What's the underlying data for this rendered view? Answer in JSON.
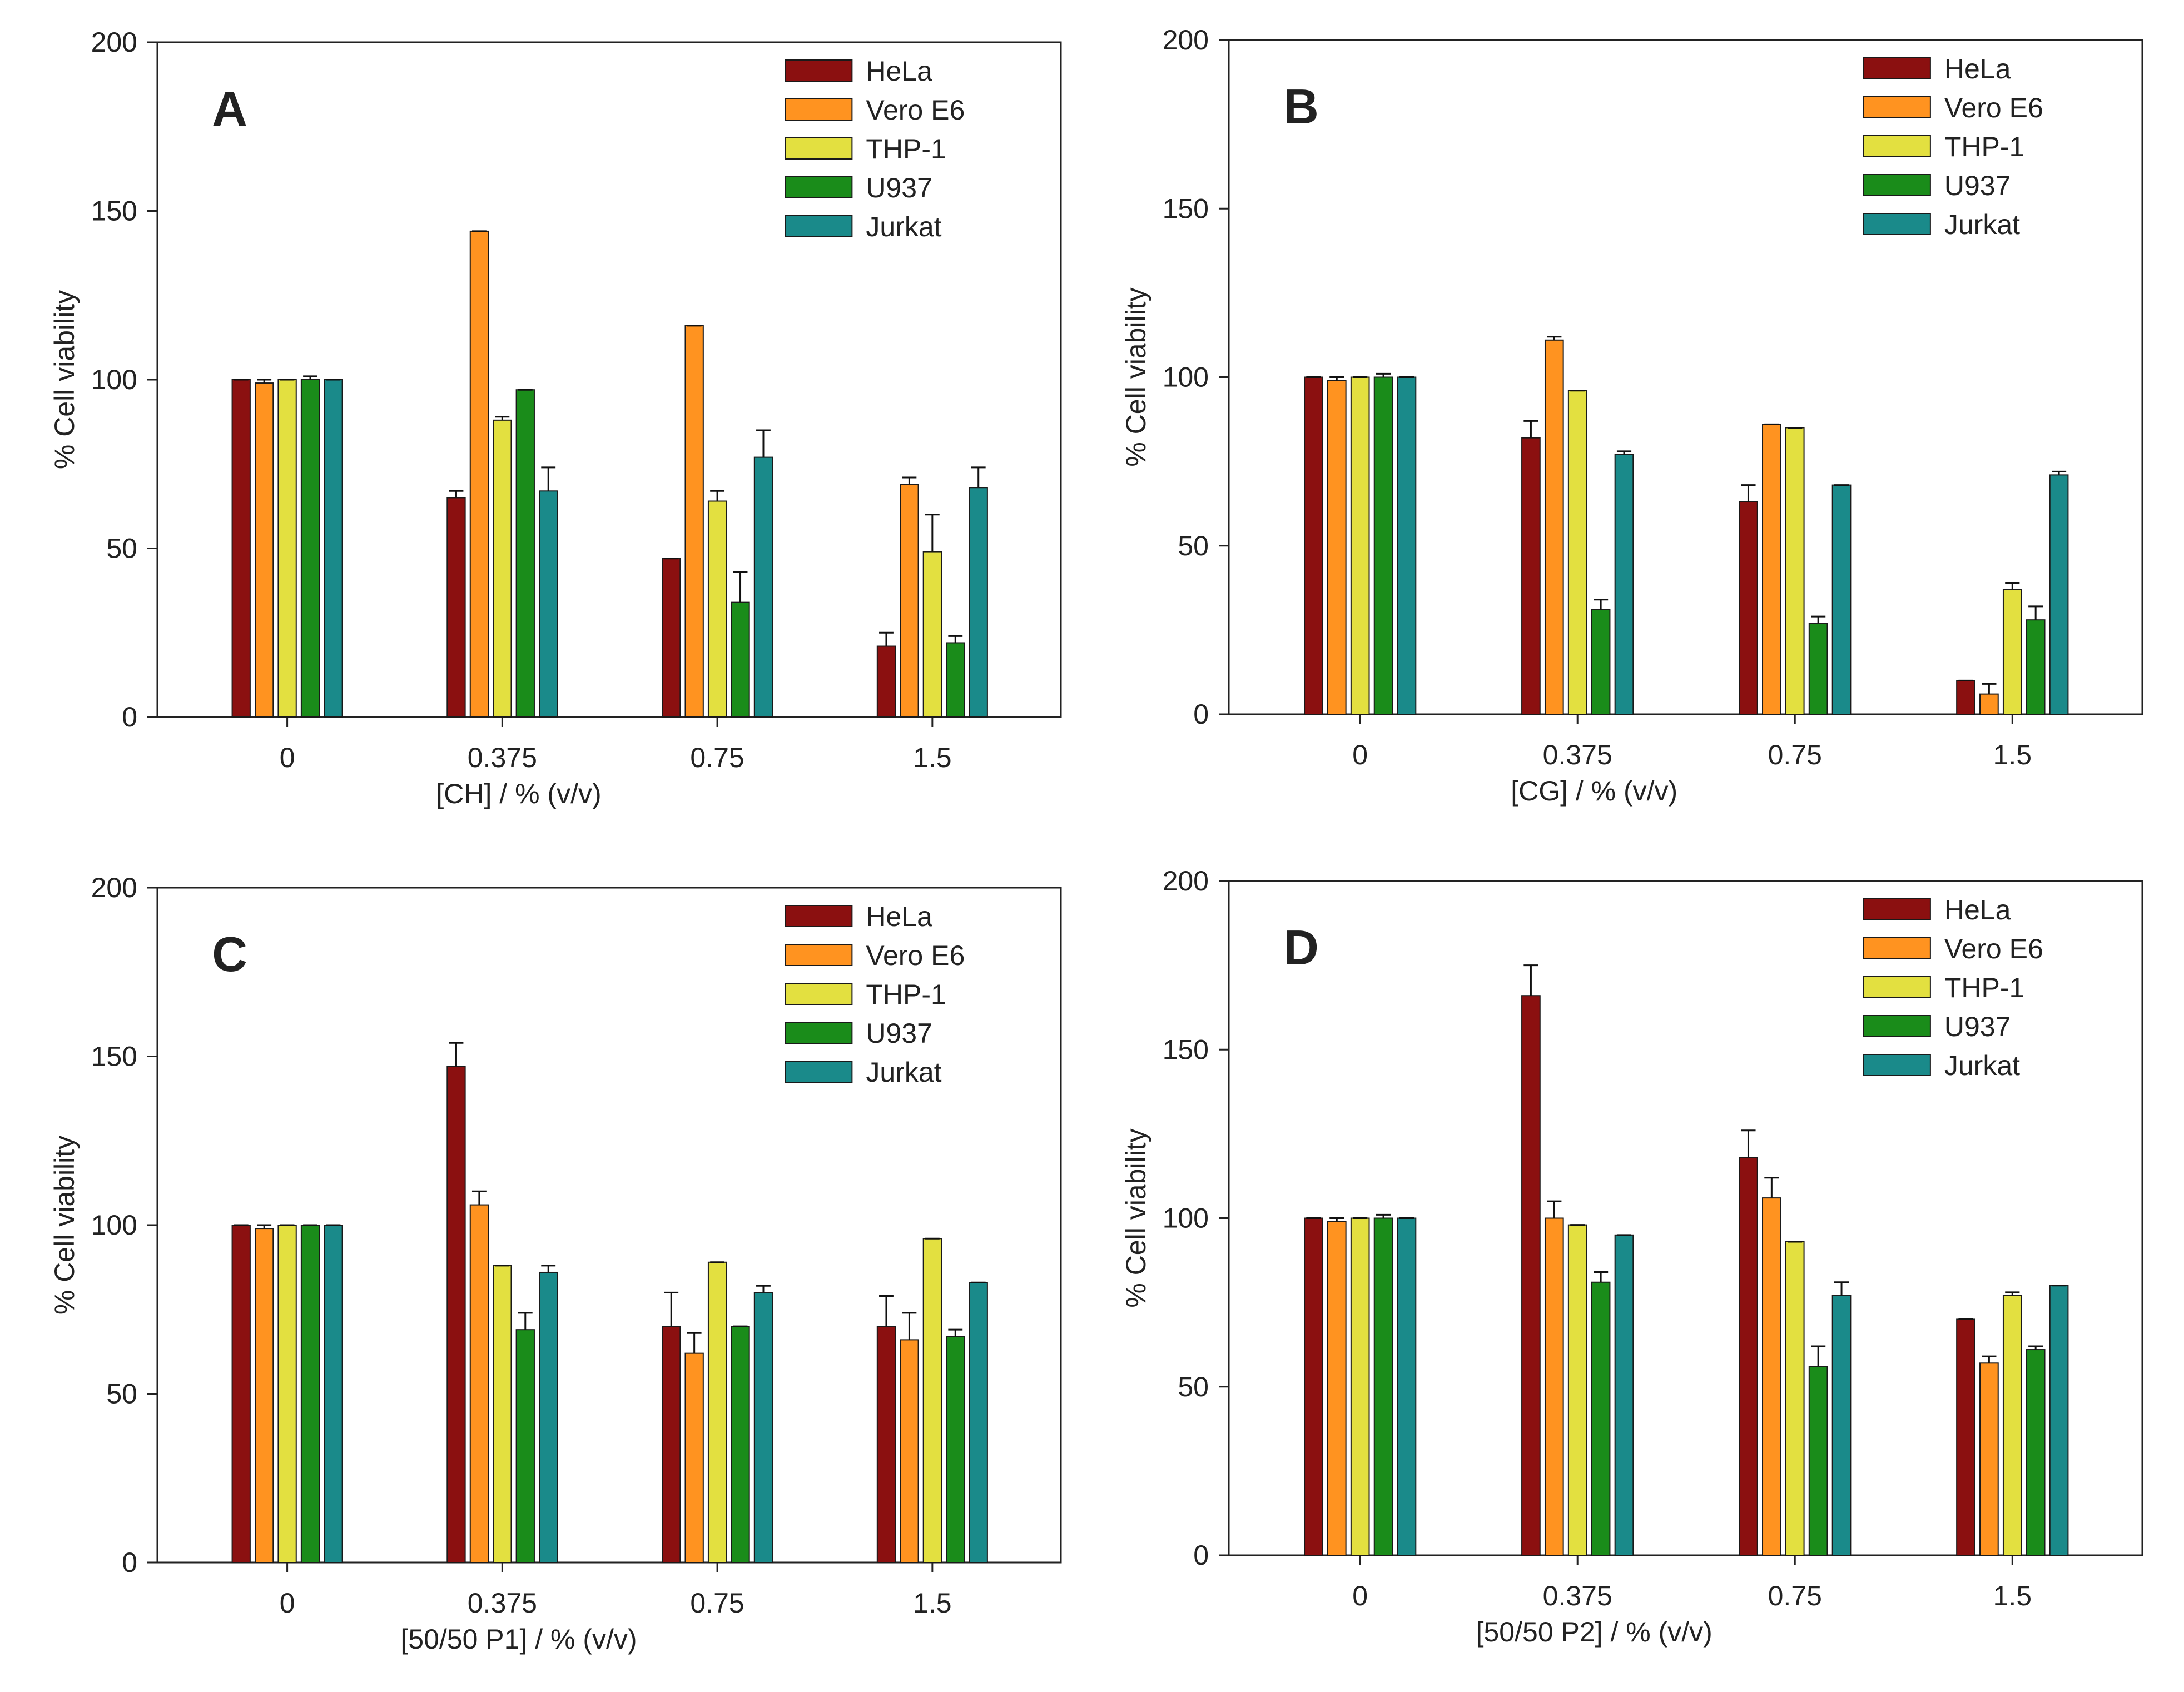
{
  "chart_data": [
    {
      "type": "bar",
      "panel_letter": "A",
      "xlabel": "[CH] / % (v/v)",
      "ylabel": "% Cell viability",
      "ylim": [
        0,
        200
      ],
      "yticks": [
        0,
        50,
        100,
        150,
        200
      ],
      "categories": [
        "0",
        "0.375",
        "0.75",
        "1.5"
      ],
      "legend_position": "top-right",
      "series": [
        {
          "name": "HeLa",
          "color": "#8b1010",
          "values": [
            100,
            65,
            47,
            21
          ],
          "errors": [
            0,
            2,
            0,
            4
          ]
        },
        {
          "name": "Vero E6",
          "color": "#ff9320",
          "values": [
            99,
            144,
            116,
            69
          ],
          "errors": [
            1,
            0,
            0,
            2
          ]
        },
        {
          "name": "THP-1",
          "color": "#e3e040",
          "values": [
            100,
            88,
            64,
            49
          ],
          "errors": [
            0,
            1,
            3,
            11
          ]
        },
        {
          "name": "U937",
          "color": "#1a8c1a",
          "values": [
            100,
            97,
            34,
            22
          ],
          "errors": [
            1,
            0,
            9,
            2
          ]
        },
        {
          "name": "Jurkat",
          "color": "#1a8a8a",
          "values": [
            100,
            67,
            77,
            68
          ],
          "errors": [
            0,
            7,
            8,
            6
          ]
        }
      ]
    },
    {
      "type": "bar",
      "panel_letter": "B",
      "xlabel": "[CG] / % (v/v)",
      "ylabel": "% Cell viability",
      "ylim": [
        0,
        200
      ],
      "yticks": [
        0,
        50,
        100,
        150,
        200
      ],
      "categories": [
        "0",
        "0.375",
        "0.75",
        "1.5"
      ],
      "legend_position": "top-right",
      "series": [
        {
          "name": "HeLa",
          "color": "#8b1010",
          "values": [
            100,
            82,
            63,
            10
          ],
          "errors": [
            0,
            5,
            5,
            0
          ]
        },
        {
          "name": "Vero E6",
          "color": "#ff9320",
          "values": [
            99,
            111,
            86,
            6
          ],
          "errors": [
            1,
            1,
            0,
            3
          ]
        },
        {
          "name": "THP-1",
          "color": "#e3e040",
          "values": [
            100,
            96,
            85,
            37
          ],
          "errors": [
            0,
            0,
            0,
            2
          ]
        },
        {
          "name": "U937",
          "color": "#1a8c1a",
          "values": [
            100,
            31,
            27,
            28
          ],
          "errors": [
            1,
            3,
            2,
            4
          ]
        },
        {
          "name": "Jurkat",
          "color": "#1a8a8a",
          "values": [
            100,
            77,
            68,
            71
          ],
          "errors": [
            0,
            1,
            0,
            1
          ]
        }
      ]
    },
    {
      "type": "bar",
      "panel_letter": "C",
      "xlabel": "[50/50 P1] / % (v/v)",
      "ylabel": "% Cell viability",
      "ylim": [
        0,
        200
      ],
      "yticks": [
        0,
        50,
        100,
        150,
        200
      ],
      "categories": [
        "0",
        "0.375",
        "0.75",
        "1.5"
      ],
      "legend_position": "top-right",
      "series": [
        {
          "name": "HeLa",
          "color": "#8b1010",
          "values": [
            100,
            147,
            70,
            70
          ],
          "errors": [
            0,
            7,
            10,
            9
          ]
        },
        {
          "name": "Vero E6",
          "color": "#ff9320",
          "values": [
            99,
            106,
            62,
            66
          ],
          "errors": [
            1,
            4,
            6,
            8
          ]
        },
        {
          "name": "THP-1",
          "color": "#e3e040",
          "values": [
            100,
            88,
            89,
            96
          ],
          "errors": [
            0,
            0,
            0,
            0
          ]
        },
        {
          "name": "U937",
          "color": "#1a8c1a",
          "values": [
            100,
            69,
            70,
            67
          ],
          "errors": [
            0,
            5,
            0,
            2
          ]
        },
        {
          "name": "Jurkat",
          "color": "#1a8a8a",
          "values": [
            100,
            86,
            80,
            83
          ],
          "errors": [
            0,
            2,
            2,
            0
          ]
        }
      ]
    },
    {
      "type": "bar",
      "panel_letter": "D",
      "xlabel": "[50/50 P2] / % (v/v)",
      "ylabel": "% Cell viability",
      "ylim": [
        0,
        200
      ],
      "yticks": [
        0,
        50,
        100,
        150,
        200
      ],
      "categories": [
        "0",
        "0.375",
        "0.75",
        "1.5"
      ],
      "legend_position": "top-right",
      "series": [
        {
          "name": "HeLa",
          "color": "#8b1010",
          "values": [
            100,
            166,
            118,
            70
          ],
          "errors": [
            0,
            9,
            8,
            0
          ]
        },
        {
          "name": "Vero E6",
          "color": "#ff9320",
          "values": [
            99,
            100,
            106,
            57
          ],
          "errors": [
            1,
            5,
            6,
            2
          ]
        },
        {
          "name": "THP-1",
          "color": "#e3e040",
          "values": [
            100,
            98,
            93,
            77
          ],
          "errors": [
            0,
            0,
            0,
            1
          ]
        },
        {
          "name": "U937",
          "color": "#1a8c1a",
          "values": [
            100,
            81,
            56,
            61
          ],
          "errors": [
            1,
            3,
            6,
            1
          ]
        },
        {
          "name": "Jurkat",
          "color": "#1a8a8a",
          "values": [
            100,
            95,
            77,
            80
          ],
          "errors": [
            0,
            0,
            4,
            0
          ]
        }
      ]
    }
  ]
}
